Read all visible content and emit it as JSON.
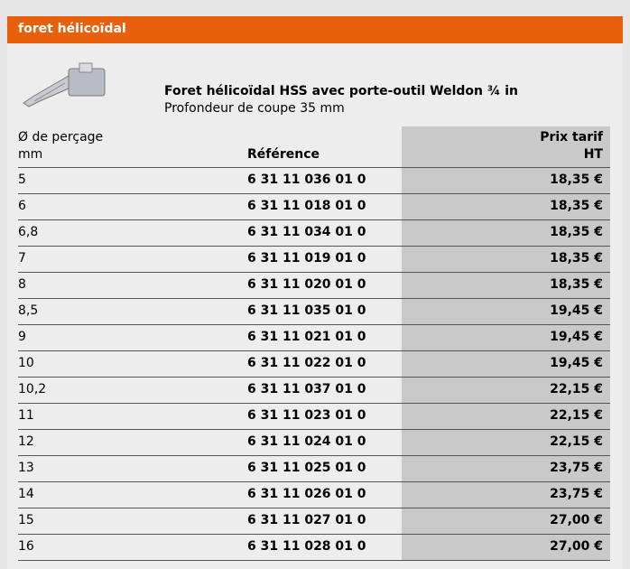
{
  "header": {
    "title": "foret hélicoïdal"
  },
  "product": {
    "title": "Foret hélicoïdal HSS avec porte-outil Weldon ¾ in",
    "subtitle": "Profondeur de coupe 35 mm"
  },
  "table": {
    "columns": [
      [
        "Ø de perçage",
        "mm"
      ],
      [
        "Référence"
      ],
      [
        "Prix tarif",
        "HT"
      ]
    ],
    "rows": [
      [
        "5",
        "6 31 11 036 01 0",
        "18,35 €"
      ],
      [
        "6",
        "6 31 11 018 01 0",
        "18,35 €"
      ],
      [
        "6,8",
        "6 31 11 034 01 0",
        "18,35 €"
      ],
      [
        "7",
        "6 31 11 019 01 0",
        "18,35 €"
      ],
      [
        "8",
        "6 31 11 020 01 0",
        "18,35 €"
      ],
      [
        "8,5",
        "6 31 11 035 01 0",
        "19,45 €"
      ],
      [
        "9",
        "6 31 11 021 01 0",
        "19,45 €"
      ],
      [
        "10",
        "6 31 11 022 01 0",
        "19,45 €"
      ],
      [
        "10,2",
        "6 31 11 037 01 0",
        "22,15 €"
      ],
      [
        "11",
        "6 31 11 023 01 0",
        "22,15 €"
      ],
      [
        "12",
        "6 31 11 024 01 0",
        "22,15 €"
      ],
      [
        "13",
        "6 31 11 025 01 0",
        "23,75 €"
      ],
      [
        "14",
        "6 31 11 026 01 0",
        "23,75 €"
      ],
      [
        "15",
        "6 31 11 027 01 0",
        "27,00 €"
      ],
      [
        "16",
        "6 31 11 028 01 0",
        "27,00 €"
      ]
    ]
  }
}
